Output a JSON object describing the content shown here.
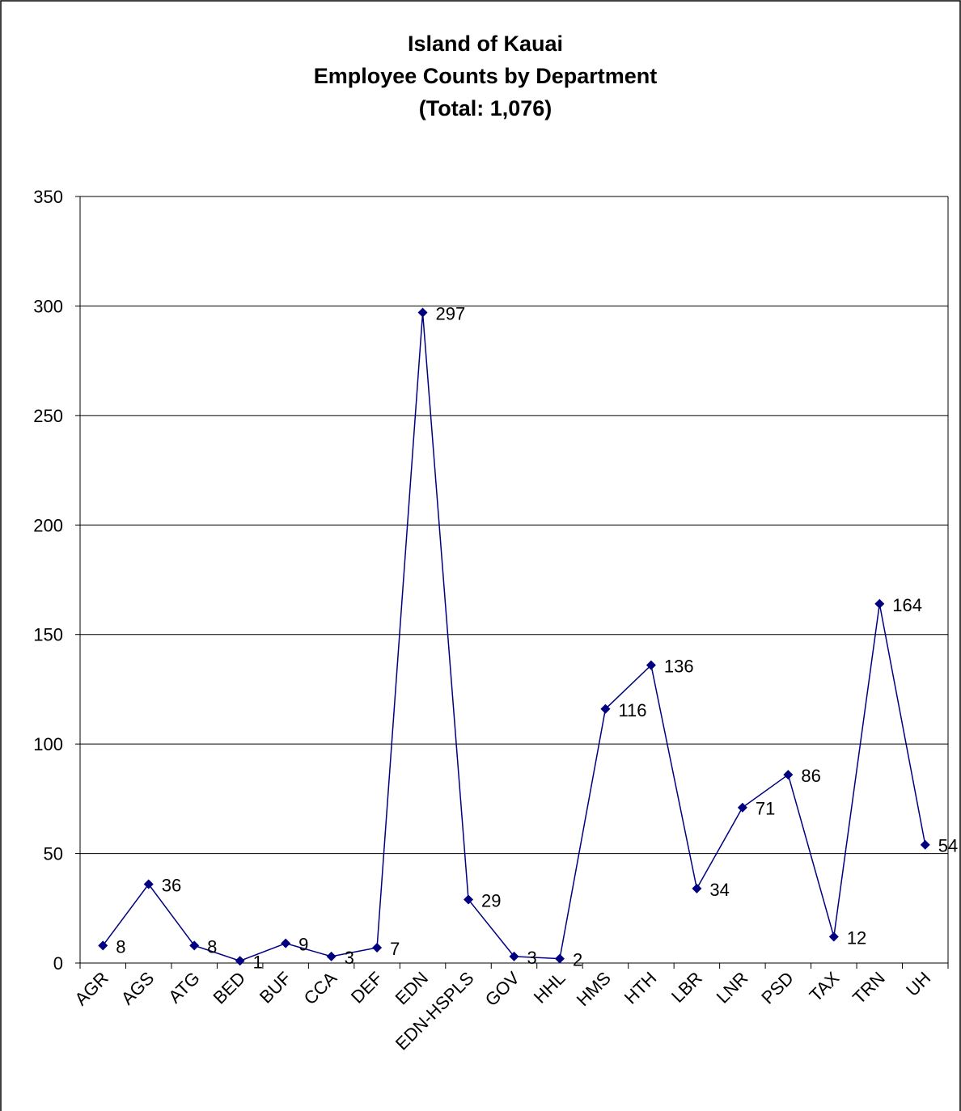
{
  "chart_data": {
    "type": "line",
    "title": [
      "Island of Kauai",
      "Employee Counts by Department",
      "(Total:  1,076)"
    ],
    "categories": [
      "AGR",
      "AGS",
      "ATG",
      "BED",
      "BUF",
      "CCA",
      "DEF",
      "EDN",
      "EDN-HSPLS",
      "GOV",
      "HHL",
      "HMS",
      "HTH",
      "LBR",
      "LNR",
      "PSD",
      "TAX",
      "TRN",
      "UH"
    ],
    "series": [
      {
        "color": "#000080",
        "values": [
          8,
          36,
          8,
          1,
          9,
          3,
          7,
          297,
          29,
          3,
          2,
          116,
          136,
          34,
          71,
          86,
          12,
          164,
          54
        ]
      }
    ],
    "ylim": [
      0,
      350
    ],
    "yticks": [
      0,
      50,
      100,
      150,
      200,
      250,
      300,
      350
    ],
    "grid": true
  }
}
